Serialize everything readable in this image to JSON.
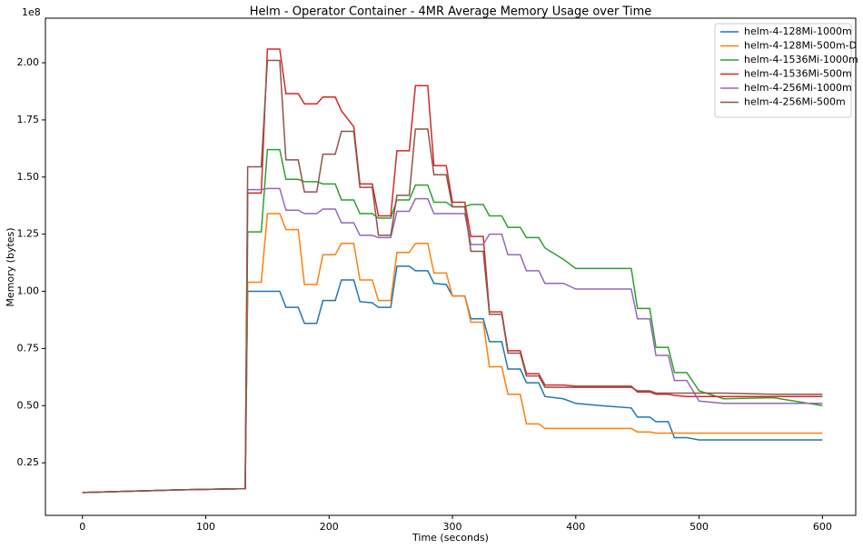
{
  "chart_data": {
    "type": "line",
    "title": "Helm - Operator Container - 4MR Average Memory Usage over Time",
    "x_label": "Time (seconds)",
    "y_label": "Memory (bytes)",
    "y_offset_label": "1e8",
    "legend": "upper right",
    "grid": false,
    "xlim": [
      -30,
      627
    ],
    "ylim": [
      0.02,
      2.195
    ],
    "xticks": [
      0,
      100,
      200,
      300,
      400,
      500,
      600
    ],
    "yticks": [
      0.25,
      {
        "value": 0.5,
        "label": "0.50"
      },
      0.75,
      {
        "value": 1,
        "label": "1.00"
      },
      1.25,
      {
        "value": 1.5,
        "label": "1.50"
      },
      1.75,
      {
        "value": 2,
        "label": "2.00"
      }
    ],
    "x": [
      0,
      20,
      40,
      60,
      80,
      100,
      120,
      132,
      134,
      145,
      150,
      160,
      165,
      175,
      180,
      190,
      195,
      205,
      210,
      220,
      225,
      235,
      240,
      250,
      255,
      265,
      270,
      280,
      285,
      295,
      300,
      310,
      315,
      325,
      330,
      340,
      345,
      355,
      360,
      370,
      375,
      390,
      400,
      420,
      445,
      450,
      460,
      465,
      475,
      480,
      490,
      500,
      520,
      560,
      600
    ],
    "series": [
      {
        "name": "helm-4-128Mi-1000m",
        "color": "#1f77b4",
        "values": [
          0.12,
          0.123,
          0.126,
          0.129,
          0.132,
          0.134,
          0.136,
          0.137,
          1.0,
          1.0,
          1.0,
          1.0,
          0.93,
          0.93,
          0.86,
          0.86,
          0.96,
          0.96,
          1.05,
          1.05,
          0.955,
          0.95,
          0.93,
          0.93,
          1.11,
          1.11,
          1.09,
          1.09,
          1.035,
          1.03,
          0.98,
          0.98,
          0.88,
          0.88,
          0.78,
          0.78,
          0.66,
          0.66,
          0.6,
          0.6,
          0.54,
          0.53,
          0.51,
          0.5,
          0.49,
          0.45,
          0.45,
          0.43,
          0.43,
          0.36,
          0.36,
          0.35,
          0.35,
          0.35,
          0.35
        ]
      },
      {
        "name": "helm-4-128Mi-500m-D",
        "color": "#ff7f0e",
        "values": [
          0.12,
          0.123,
          0.126,
          0.129,
          0.132,
          0.134,
          0.136,
          0.137,
          1.04,
          1.04,
          1.34,
          1.34,
          1.27,
          1.27,
          1.03,
          1.03,
          1.16,
          1.16,
          1.21,
          1.21,
          1.05,
          1.05,
          0.96,
          0.96,
          1.17,
          1.17,
          1.21,
          1.21,
          1.08,
          1.08,
          0.98,
          0.98,
          0.865,
          0.865,
          0.67,
          0.67,
          0.55,
          0.55,
          0.42,
          0.42,
          0.4,
          0.4,
          0.4,
          0.4,
          0.4,
          0.385,
          0.385,
          0.38,
          0.38,
          0.38,
          0.38,
          0.38,
          0.38,
          0.38,
          0.38
        ]
      },
      {
        "name": "helm-4-1536Mi-1000m",
        "color": "#2ca02c",
        "values": [
          0.12,
          0.123,
          0.126,
          0.129,
          0.132,
          0.134,
          0.136,
          0.137,
          1.26,
          1.26,
          1.62,
          1.62,
          1.49,
          1.49,
          1.48,
          1.48,
          1.47,
          1.47,
          1.4,
          1.4,
          1.34,
          1.34,
          1.32,
          1.32,
          1.4,
          1.4,
          1.465,
          1.465,
          1.39,
          1.39,
          1.37,
          1.37,
          1.38,
          1.38,
          1.33,
          1.33,
          1.28,
          1.28,
          1.235,
          1.235,
          1.19,
          1.14,
          1.1,
          1.1,
          1.1,
          0.925,
          0.925,
          0.755,
          0.755,
          0.645,
          0.645,
          0.565,
          0.53,
          0.535,
          0.5
        ]
      },
      {
        "name": "helm-4-1536Mi-500m",
        "color": "#d62728",
        "values": [
          0.12,
          0.123,
          0.126,
          0.129,
          0.132,
          0.134,
          0.136,
          0.137,
          1.43,
          1.43,
          2.06,
          2.06,
          1.865,
          1.865,
          1.82,
          1.82,
          1.85,
          1.85,
          1.79,
          1.72,
          1.47,
          1.47,
          1.33,
          1.33,
          1.615,
          1.615,
          1.9,
          1.9,
          1.55,
          1.55,
          1.39,
          1.39,
          1.24,
          1.24,
          0.91,
          0.91,
          0.74,
          0.74,
          0.64,
          0.64,
          0.59,
          0.59,
          0.585,
          0.585,
          0.585,
          0.56,
          0.56,
          0.55,
          0.55,
          0.545,
          0.54,
          0.54,
          0.54,
          0.54,
          0.54
        ]
      },
      {
        "name": "helm-4-256Mi-1000m",
        "color": "#9467bd",
        "values": [
          0.12,
          0.123,
          0.126,
          0.129,
          0.132,
          0.134,
          0.136,
          0.137,
          1.445,
          1.445,
          1.45,
          1.45,
          1.355,
          1.355,
          1.34,
          1.34,
          1.36,
          1.36,
          1.3,
          1.3,
          1.245,
          1.245,
          1.235,
          1.235,
          1.35,
          1.35,
          1.405,
          1.405,
          1.34,
          1.34,
          1.34,
          1.34,
          1.205,
          1.205,
          1.25,
          1.25,
          1.16,
          1.16,
          1.09,
          1.09,
          1.035,
          1.035,
          1.01,
          1.01,
          1.01,
          0.88,
          0.88,
          0.72,
          0.72,
          0.61,
          0.61,
          0.52,
          0.51,
          0.51,
          0.51
        ]
      },
      {
        "name": "helm-4-256Mi-500m",
        "color": "#8c564b",
        "values": [
          0.12,
          0.123,
          0.126,
          0.129,
          0.132,
          0.134,
          0.136,
          0.137,
          1.545,
          1.545,
          2.01,
          2.01,
          1.575,
          1.575,
          1.435,
          1.435,
          1.6,
          1.6,
          1.7,
          1.7,
          1.455,
          1.455,
          1.245,
          1.245,
          1.42,
          1.42,
          1.71,
          1.71,
          1.51,
          1.51,
          1.37,
          1.37,
          1.175,
          1.175,
          0.9,
          0.9,
          0.73,
          0.73,
          0.63,
          0.63,
          0.58,
          0.58,
          0.58,
          0.58,
          0.58,
          0.565,
          0.565,
          0.555,
          0.555,
          0.555,
          0.555,
          0.555,
          0.555,
          0.55,
          0.55
        ]
      }
    ]
  }
}
